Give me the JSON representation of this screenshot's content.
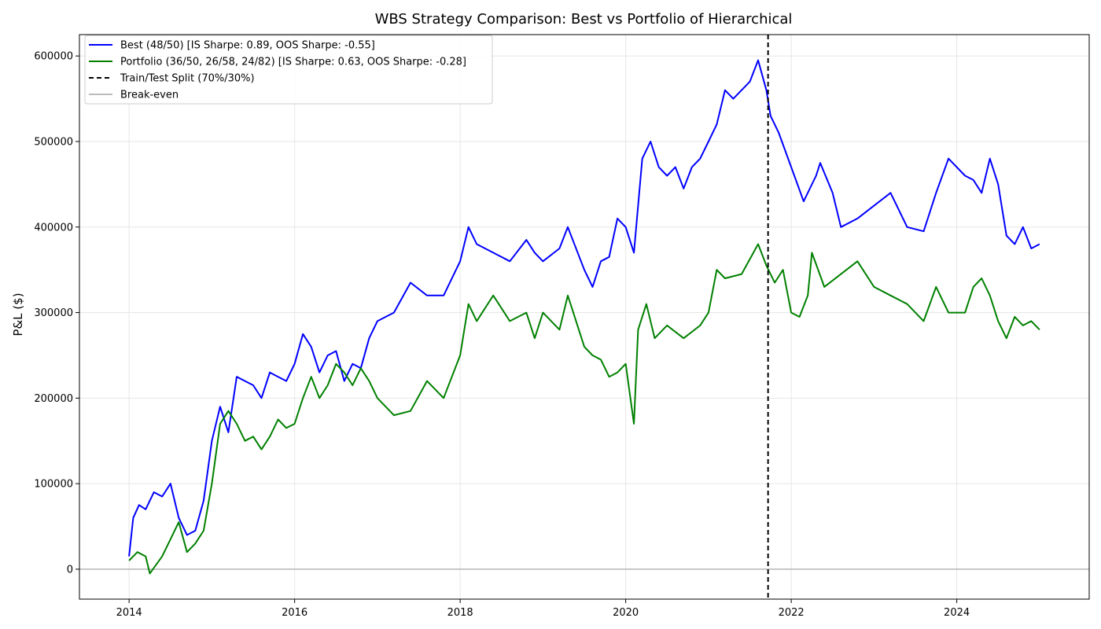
{
  "chart_data": {
    "type": "line",
    "title": "WBS Strategy Comparison: Best vs Portfolio of Hierarchical",
    "xlabel": "",
    "ylabel": "P&L ($)",
    "xlim": [
      2013.4,
      2025.6
    ],
    "ylim": [
      -35000,
      625000
    ],
    "x_ticks": [
      2014,
      2016,
      2018,
      2020,
      2022,
      2024
    ],
    "y_ticks": [
      0,
      100000,
      200000,
      300000,
      400000,
      500000,
      600000
    ],
    "grid": true,
    "legend_position": "top-left",
    "split_x": 2021.72,
    "breakeven_y": 0,
    "series": [
      {
        "name": "Best (48/50) [IS Sharpe: 0.89, OOS Sharpe: -0.55]",
        "color": "#0000ff",
        "style": "solid",
        "x": [
          2014.0,
          2014.05,
          2014.12,
          2014.2,
          2014.3,
          2014.4,
          2014.5,
          2014.6,
          2014.7,
          2014.8,
          2014.9,
          2015.0,
          2015.1,
          2015.2,
          2015.3,
          2015.4,
          2015.5,
          2015.6,
          2015.7,
          2015.8,
          2015.9,
          2016.0,
          2016.1,
          2016.2,
          2016.3,
          2016.4,
          2016.5,
          2016.6,
          2016.7,
          2016.8,
          2016.9,
          2017.0,
          2017.2,
          2017.4,
          2017.6,
          2017.8,
          2018.0,
          2018.1,
          2018.2,
          2018.4,
          2018.6,
          2018.8,
          2018.9,
          2019.0,
          2019.2,
          2019.3,
          2019.5,
          2019.6,
          2019.7,
          2019.8,
          2019.9,
          2020.0,
          2020.1,
          2020.2,
          2020.3,
          2020.4,
          2020.5,
          2020.6,
          2020.7,
          2020.8,
          2020.9,
          2021.0,
          2021.1,
          2021.2,
          2021.3,
          2021.5,
          2021.6,
          2021.7,
          2021.75,
          2021.85,
          2022.0,
          2022.15,
          2022.3,
          2022.35,
          2022.5,
          2022.6,
          2022.8,
          2023.0,
          2023.2,
          2023.4,
          2023.6,
          2023.75,
          2023.9,
          2024.1,
          2024.2,
          2024.3,
          2024.4,
          2024.5,
          2024.6,
          2024.7,
          2024.8,
          2024.9,
          2025.0
        ],
        "y": [
          15000,
          60000,
          75000,
          70000,
          90000,
          85000,
          100000,
          60000,
          40000,
          45000,
          80000,
          150000,
          190000,
          160000,
          225000,
          220000,
          215000,
          200000,
          230000,
          225000,
          220000,
          240000,
          275000,
          260000,
          230000,
          250000,
          255000,
          220000,
          240000,
          235000,
          270000,
          290000,
          300000,
          335000,
          320000,
          320000,
          360000,
          400000,
          380000,
          370000,
          360000,
          385000,
          370000,
          360000,
          375000,
          400000,
          350000,
          330000,
          360000,
          365000,
          410000,
          400000,
          370000,
          480000,
          500000,
          470000,
          460000,
          470000,
          445000,
          470000,
          480000,
          500000,
          520000,
          560000,
          550000,
          570000,
          595000,
          560000,
          530000,
          510000,
          470000,
          430000,
          460000,
          475000,
          440000,
          400000,
          410000,
          425000,
          440000,
          400000,
          395000,
          440000,
          480000,
          460000,
          455000,
          440000,
          480000,
          450000,
          390000,
          380000,
          400000,
          375000,
          380000
        ]
      },
      {
        "name": "Portfolio (36/50, 26/58, 24/82) [IS Sharpe: 0.63, OOS Sharpe: -0.28]",
        "color": "#008000",
        "style": "solid",
        "x": [
          2014.0,
          2014.1,
          2014.2,
          2014.25,
          2014.4,
          2014.5,
          2014.6,
          2014.7,
          2014.8,
          2014.9,
          2015.0,
          2015.1,
          2015.2,
          2015.3,
          2015.4,
          2015.5,
          2015.6,
          2015.7,
          2015.8,
          2015.9,
          2016.0,
          2016.1,
          2016.2,
          2016.3,
          2016.4,
          2016.5,
          2016.6,
          2016.7,
          2016.8,
          2016.9,
          2017.0,
          2017.2,
          2017.4,
          2017.6,
          2017.8,
          2018.0,
          2018.1,
          2018.2,
          2018.4,
          2018.6,
          2018.8,
          2018.9,
          2019.0,
          2019.2,
          2019.3,
          2019.5,
          2019.6,
          2019.7,
          2019.8,
          2019.9,
          2020.0,
          2020.1,
          2020.15,
          2020.25,
          2020.35,
          2020.5,
          2020.7,
          2020.9,
          2021.0,
          2021.1,
          2021.2,
          2021.4,
          2021.6,
          2021.7,
          2021.8,
          2021.9,
          2022.0,
          2022.1,
          2022.2,
          2022.25,
          2022.4,
          2022.6,
          2022.8,
          2023.0,
          2023.2,
          2023.4,
          2023.6,
          2023.75,
          2023.9,
          2024.1,
          2024.2,
          2024.3,
          2024.4,
          2024.5,
          2024.6,
          2024.7,
          2024.8,
          2024.9,
          2025.0
        ],
        "y": [
          10000,
          20000,
          15000,
          -5000,
          15000,
          35000,
          55000,
          20000,
          30000,
          45000,
          100000,
          170000,
          185000,
          170000,
          150000,
          155000,
          140000,
          155000,
          175000,
          165000,
          170000,
          200000,
          225000,
          200000,
          215000,
          240000,
          230000,
          215000,
          235000,
          220000,
          200000,
          180000,
          185000,
          220000,
          200000,
          250000,
          310000,
          290000,
          320000,
          290000,
          300000,
          270000,
          300000,
          280000,
          320000,
          260000,
          250000,
          245000,
          225000,
          230000,
          240000,
          170000,
          280000,
          310000,
          270000,
          285000,
          270000,
          285000,
          300000,
          350000,
          340000,
          345000,
          380000,
          355000,
          335000,
          350000,
          300000,
          295000,
          320000,
          370000,
          330000,
          345000,
          360000,
          330000,
          320000,
          310000,
          290000,
          330000,
          300000,
          300000,
          330000,
          340000,
          320000,
          290000,
          270000,
          295000,
          285000,
          290000,
          280000
        ]
      },
      {
        "name": "Train/Test Split (70%/30%)",
        "color": "#000000",
        "style": "dashed"
      },
      {
        "name": "Break-even",
        "color": "#bbbbbb",
        "style": "solid"
      }
    ]
  }
}
